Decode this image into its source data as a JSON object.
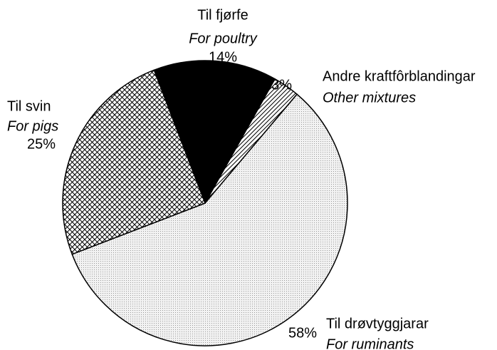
{
  "chart_data": {
    "type": "pie",
    "categories": [
      "Til fjørfe",
      "Andre kraftfôrblandingar",
      "Til drøvtyggjarar",
      "Til svin"
    ],
    "categories_en": [
      "For poultry",
      "Other mixtures",
      "For ruminants",
      "For pigs"
    ],
    "values": [
      14,
      3,
      58,
      25
    ],
    "value_labels": [
      "14%",
      "3%",
      "58%",
      "25%"
    ],
    "patterns": [
      "solid",
      "diagonal",
      "dotted",
      "crosshatch"
    ]
  }
}
